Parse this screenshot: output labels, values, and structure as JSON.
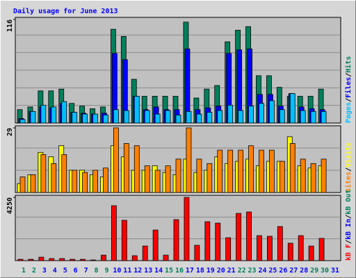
{
  "title": "Daily usage for June 2013",
  "legend_separator": "/",
  "chart_data": [
    {
      "type": "bar",
      "ylim": [
        0,
        116
      ],
      "yticks": [
        116
      ],
      "series": [
        {
          "name": "Hits",
          "color": "#00805c",
          "values": [
            15,
            18,
            36,
            36,
            38,
            22,
            19,
            16,
            18,
            105,
            97,
            49,
            30,
            30,
            30,
            30,
            113,
            28,
            38,
            42,
            91,
            104,
            108,
            53,
            53,
            40,
            30,
            30,
            30,
            38,
            null
          ]
        },
        {
          "name": "Files",
          "color": "#0000ff",
          "values": [
            5,
            13,
            18,
            17,
            22,
            12,
            11,
            10,
            11,
            78,
            71,
            30,
            15,
            18,
            15,
            15,
            83,
            15,
            17,
            19,
            78,
            82,
            83,
            32,
            32,
            19,
            33,
            18,
            16,
            15,
            null
          ]
        },
        {
          "name": "Pages",
          "color": "#00c0ff",
          "values": [
            4,
            13,
            20,
            18,
            24,
            12,
            10,
            10,
            9,
            15,
            14,
            30,
            14,
            10,
            14,
            9,
            13,
            10,
            12,
            14,
            20,
            14,
            19,
            22,
            25,
            15,
            33,
            14,
            13,
            13,
            null
          ]
        }
      ]
    },
    {
      "type": "bar",
      "ylim": [
        0,
        29
      ],
      "yticks": [
        29
      ],
      "series": [
        {
          "name": "Visits",
          "color": "#ffff00",
          "values": [
            4,
            8,
            18,
            16,
            21,
            10,
            10,
            8,
            7,
            21,
            16,
            10,
            10,
            12,
            9,
            8,
            15,
            9,
            10,
            16,
            13,
            14,
            15,
            12,
            14,
            14,
            25,
            12,
            11,
            12,
            null
          ]
        },
        {
          "name": "Sites",
          "color": "#ff8000",
          "values": [
            7,
            8,
            17,
            13,
            17,
            10,
            9,
            10,
            11,
            29,
            22,
            21,
            12,
            10,
            12,
            15,
            29,
            15,
            13,
            19,
            19,
            19,
            21,
            19,
            19,
            14,
            22,
            15,
            13,
            15,
            null
          ]
        }
      ]
    },
    {
      "type": "bar",
      "ylim": [
        0,
        4250
      ],
      "yticks": [
        4250
      ],
      "categories": [
        "1",
        "2",
        "3",
        "4",
        "5",
        "6",
        "7",
        "8",
        "9",
        "10",
        "11",
        "12",
        "13",
        "14",
        "15",
        "16",
        "17",
        "18",
        "19",
        "20",
        "21",
        "22",
        "23",
        "24",
        "25",
        "26",
        "27",
        "28",
        "29",
        "30",
        "31"
      ],
      "category_colors": [
        "#00805c",
        "#00805c",
        "#0000ff",
        "#0000ff",
        "#0000ff",
        "#0000ff",
        "#0000ff",
        "#00805c",
        "#00805c",
        "#0000ff",
        "#0000ff",
        "#0000ff",
        "#0000ff",
        "#0000ff",
        "#00805c",
        "#00805c",
        "#0000ff",
        "#0000ff",
        "#0000ff",
        "#0000ff",
        "#0000ff",
        "#00805c",
        "#00805c",
        "#0000ff",
        "#0000ff",
        "#0000ff",
        "#0000ff",
        "#0000ff",
        "#00805c",
        "#00805c",
        "#0000ff"
      ],
      "series": [
        {
          "name": "kB Out",
          "color": "#00805c",
          "values": [
            0,
            0,
            0,
            0,
            0,
            0,
            0,
            0,
            0,
            0,
            0,
            0,
            0,
            0,
            0,
            0,
            0,
            0,
            0,
            0,
            0,
            0,
            0,
            0,
            0,
            0,
            0,
            0,
            0,
            0,
            null
          ]
        },
        {
          "name": "kB In",
          "color": "#0000ff",
          "values": [
            0,
            0,
            0,
            0,
            0,
            0,
            0,
            0,
            0,
            0,
            0,
            0,
            0,
            0,
            0,
            0,
            0,
            0,
            0,
            0,
            0,
            0,
            0,
            0,
            0,
            0,
            0,
            0,
            0,
            0,
            null
          ]
        },
        {
          "name": "kB F",
          "color": "#ff0000",
          "values": [
            90,
            90,
            230,
            140,
            140,
            90,
            90,
            45,
            370,
            3690,
            2710,
            330,
            980,
            2055,
            370,
            2755,
            4250,
            1030,
            2615,
            2520,
            1540,
            3175,
            3270,
            1680,
            1635,
            2290,
            1170,
            1680,
            980,
            1495,
            null
          ]
        }
      ]
    }
  ]
}
